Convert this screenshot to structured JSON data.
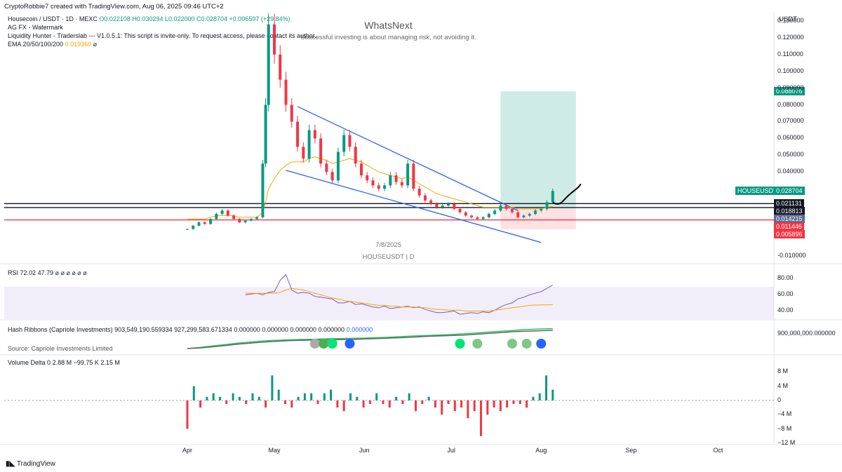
{
  "header": "CryptoRobbie7 created with TradingView.com, Aug 06, 2025 09:46 UTC+2",
  "legend": {
    "symbol": "Housecoin / USDT · 1D · MEXC",
    "ohlc": "O0.022108 H0.030294 L0.022000 C0.028704 +0.006597 (+29.84%)",
    "watermark": "AG FX - Watermark",
    "liquidity": "Liquidity Hunter - Traderslab --- V1.0.5.1: This script is invite-only. To request access, please contact its author.",
    "ema_label": "EMA 20/50/100/200",
    "ema_value": "0.019360",
    "ema_suffix": "⌀"
  },
  "watermark": {
    "title": "WhatsNext",
    "subtitle": "Successful investing is about managing risk, not avoiding it.",
    "date": "7/8/2025",
    "symbol": "HOUSEUSDT | D"
  },
  "currency": "USDT",
  "tv_logo": "TradingView",
  "colors": {
    "up": "#089981",
    "down": "#f23645",
    "ema": "#f7a600",
    "rsi": "#7e57c2",
    "wedge": "#2962ff"
  },
  "chart_data": [
    {
      "type": "candlestick",
      "symbol": "HOUSEUSDT",
      "ylim": [
        -0.013,
        0.135
      ],
      "y_ticks": [
        "0.130000",
        "0.120000",
        "0.110000",
        "0.100000",
        "0.090000",
        "0.080000",
        "0.070000",
        "0.060000",
        "0.050000",
        "0.040000",
        "-0.010000"
      ],
      "x_ticks": [
        "Apr",
        "May",
        "Jun",
        "Jul",
        "Aug",
        "Sep",
        "Oct"
      ],
      "price_tags": [
        {
          "label": "0.088076",
          "value": 0.088076,
          "color": "#089981"
        },
        {
          "label": "HOUSEUSDT",
          "value": 0.028704,
          "color": "#089981"
        },
        {
          "label": "0.028704",
          "value": 0.028704,
          "color": "#089981"
        },
        {
          "label": "0.021131",
          "value": 0.021131,
          "color": "#131722"
        },
        {
          "label": "0.018813",
          "value": 0.018813,
          "color": "#131722"
        },
        {
          "label": "0.014215",
          "value": 0.014215,
          "color": "#5b6b94"
        },
        {
          "label": "0.011446",
          "value": 0.011446,
          "color": "#f23645"
        },
        {
          "label": "0.005896",
          "value": 0.005896,
          "color": "#f23645"
        }
      ],
      "horizontal_lines": [
        0.021131,
        0.018813,
        0.011446
      ],
      "position_tool": {
        "entry": 0.018813,
        "target": 0.088076,
        "stop": 0.005896
      },
      "candles": [
        {
          "d": "2025-04-01",
          "c": 0.006
        },
        {
          "d": "2025-04-03",
          "c": 0.008
        },
        {
          "d": "2025-04-05",
          "c": 0.01
        },
        {
          "d": "2025-04-07",
          "c": 0.009
        },
        {
          "d": "2025-04-09",
          "c": 0.012
        },
        {
          "d": "2025-04-11",
          "c": 0.015
        },
        {
          "d": "2025-04-13",
          "c": 0.017
        },
        {
          "d": "2025-04-15",
          "c": 0.014
        },
        {
          "d": "2025-04-17",
          "c": 0.012
        },
        {
          "d": "2025-04-19",
          "c": 0.01
        },
        {
          "d": "2025-04-21",
          "c": 0.011
        },
        {
          "d": "2025-04-23",
          "c": 0.012
        },
        {
          "d": "2025-04-25",
          "c": 0.013
        },
        {
          "d": "2025-04-27",
          "c": 0.045
        },
        {
          "d": "2025-04-28",
          "c": 0.08
        },
        {
          "d": "2025-04-29",
          "c": 0.128
        },
        {
          "d": "2025-05-01",
          "c": 0.11
        },
        {
          "d": "2025-05-03",
          "c": 0.095
        },
        {
          "d": "2025-05-05",
          "c": 0.08
        },
        {
          "d": "2025-05-07",
          "c": 0.07
        },
        {
          "d": "2025-05-09",
          "c": 0.055
        },
        {
          "d": "2025-05-11",
          "c": 0.048
        },
        {
          "d": "2025-05-13",
          "c": 0.065
        },
        {
          "d": "2025-05-15",
          "c": 0.06
        },
        {
          "d": "2025-05-17",
          "c": 0.045
        },
        {
          "d": "2025-05-19",
          "c": 0.04
        },
        {
          "d": "2025-05-21",
          "c": 0.035
        },
        {
          "d": "2025-05-23",
          "c": 0.052
        },
        {
          "d": "2025-05-25",
          "c": 0.062
        },
        {
          "d": "2025-05-27",
          "c": 0.055
        },
        {
          "d": "2025-05-29",
          "c": 0.045
        },
        {
          "d": "2025-05-31",
          "c": 0.038
        },
        {
          "d": "2025-06-02",
          "c": 0.035
        },
        {
          "d": "2025-06-04",
          "c": 0.032
        },
        {
          "d": "2025-06-06",
          "c": 0.03
        },
        {
          "d": "2025-06-08",
          "c": 0.032
        },
        {
          "d": "2025-06-10",
          "c": 0.038
        },
        {
          "d": "2025-06-12",
          "c": 0.034
        },
        {
          "d": "2025-06-14",
          "c": 0.032
        },
        {
          "d": "2025-06-16",
          "c": 0.045
        },
        {
          "d": "2025-06-18",
          "c": 0.03
        },
        {
          "d": "2025-06-20",
          "c": 0.026
        },
        {
          "d": "2025-06-22",
          "c": 0.023
        },
        {
          "d": "2025-06-24",
          "c": 0.021
        },
        {
          "d": "2025-06-26",
          "c": 0.019
        },
        {
          "d": "2025-06-28",
          "c": 0.02
        },
        {
          "d": "2025-06-30",
          "c": 0.021
        },
        {
          "d": "2025-07-02",
          "c": 0.018
        },
        {
          "d": "2025-07-04",
          "c": 0.016
        },
        {
          "d": "2025-07-06",
          "c": 0.014
        },
        {
          "d": "2025-07-08",
          "c": 0.013
        },
        {
          "d": "2025-07-10",
          "c": 0.012
        },
        {
          "d": "2025-07-12",
          "c": 0.013
        },
        {
          "d": "2025-07-14",
          "c": 0.015
        },
        {
          "d": "2025-07-16",
          "c": 0.017
        },
        {
          "d": "2025-07-18",
          "c": 0.02
        },
        {
          "d": "2025-07-20",
          "c": 0.018
        },
        {
          "d": "2025-07-22",
          "c": 0.016
        },
        {
          "d": "2025-07-24",
          "c": 0.013
        },
        {
          "d": "2025-07-26",
          "c": 0.014
        },
        {
          "d": "2025-07-28",
          "c": 0.015
        },
        {
          "d": "2025-07-30",
          "c": 0.017
        },
        {
          "d": "2025-08-01",
          "c": 0.018
        },
        {
          "d": "2025-08-03",
          "c": 0.022
        },
        {
          "d": "2025-08-05",
          "c": 0.028704
        }
      ],
      "ema": [
        0.012,
        0.012,
        0.012,
        0.012,
        0.013,
        0.014,
        0.014,
        0.014,
        0.014,
        0.013,
        0.013,
        0.013,
        0.013,
        0.016,
        0.022,
        0.03,
        0.036,
        0.041,
        0.044,
        0.046,
        0.046,
        0.046,
        0.048,
        0.049,
        0.048,
        0.047,
        0.045,
        0.046,
        0.047,
        0.048,
        0.047,
        0.046,
        0.044,
        0.042,
        0.04,
        0.039,
        0.038,
        0.037,
        0.036,
        0.037,
        0.035,
        0.033,
        0.031,
        0.029,
        0.027,
        0.026,
        0.025,
        0.024,
        0.023,
        0.022,
        0.021,
        0.02,
        0.019,
        0.019,
        0.019,
        0.019,
        0.019,
        0.019,
        0.018,
        0.018,
        0.018,
        0.018,
        0.018,
        0.019,
        0.0194
      ]
    },
    {
      "type": "line",
      "title": "RSI",
      "value_1": "72.02",
      "value_2": "47.79",
      "value_suffix": "⌀ ⌀ ⌀ ⌀ ⌀ ⌀",
      "ylim": [
        30,
        95
      ],
      "y_ticks": [
        "80.00",
        "60.00",
        "40.00"
      ],
      "band": [
        30,
        70
      ],
      "series": [
        {
          "values": [
            60,
            61,
            62,
            60,
            63,
            64,
            78,
            85,
            66,
            62,
            63,
            62,
            58,
            57,
            56,
            55,
            50,
            50,
            52,
            48,
            49,
            47,
            45,
            44,
            46,
            43,
            44,
            45,
            46,
            44,
            45,
            42,
            40,
            38,
            38,
            39,
            40,
            36,
            37,
            38,
            37,
            39,
            38,
            41,
            45,
            48,
            50,
            55,
            57,
            60,
            62,
            64,
            68,
            72.02
          ]
        },
        {
          "values": [
            62,
            62,
            62,
            62,
            62,
            62,
            63,
            66,
            68,
            67,
            66,
            64,
            62,
            60,
            58,
            56,
            55,
            53,
            52,
            51,
            50,
            49,
            48,
            47,
            47,
            46,
            46,
            45,
            45,
            45,
            44,
            44,
            43,
            42,
            42,
            41,
            41,
            41,
            40,
            40,
            40,
            40,
            40,
            41,
            42,
            43,
            44,
            45,
            46,
            47,
            47.3,
            47.5,
            47.7,
            47.79
          ]
        }
      ]
    },
    {
      "type": "area",
      "title": "Hash Ribbons (Capriole Investments)",
      "value_1": "903,549,190.559334",
      "value_2": "927,299,583.671334",
      "value_3": "0.000000",
      "value_4": "0.000000",
      "value_5": "0.000000",
      "value_6": "0.000000",
      "value_7": "0.000000",
      "value_8": "Source: Capriole Investments Limited",
      "y_ticks": [
        "900,000,000.000000"
      ],
      "series": [
        {
          "values": [
            0,
            5,
            12,
            18,
            25,
            30,
            35,
            38,
            40,
            42,
            43,
            45,
            46,
            47,
            48,
            50,
            52,
            55,
            58,
            60,
            62,
            65,
            68,
            72,
            76,
            80,
            84,
            88,
            90,
            92
          ]
        },
        {
          "values": [
            0,
            3,
            8,
            14,
            20,
            25,
            30,
            33,
            36,
            38,
            39,
            40,
            41,
            42,
            44,
            46,
            48,
            50,
            53,
            56,
            58,
            60,
            62,
            66,
            70,
            74,
            78,
            80,
            82,
            84
          ]
        }
      ]
    },
    {
      "type": "bar",
      "title": "Volume Delta",
      "value_1": "0",
      "value_2": "2.88 M",
      "value_3": "−99.75 K",
      "value_4": "2.15 M",
      "ylim": [
        -12,
        10
      ],
      "y_ticks": [
        "8 M",
        "4 M",
        "0",
        "−4 M",
        "−8 M",
        "−12 M"
      ],
      "values": [
        -8,
        4,
        -2,
        1,
        2,
        1,
        -1,
        2,
        1,
        -1,
        2,
        1,
        -2,
        7,
        3,
        -1,
        -2,
        1,
        2,
        2,
        -1,
        2,
        3,
        -2,
        -3,
        2,
        1,
        -2,
        -1,
        2,
        -1,
        -2,
        1,
        -1,
        2,
        -3,
        -1,
        1,
        -2,
        -4,
        -1,
        -3,
        -2,
        -5,
        -3,
        -10,
        -4,
        -2,
        -3,
        -2,
        -1,
        -1,
        -2,
        1,
        2,
        7,
        3
      ]
    }
  ]
}
